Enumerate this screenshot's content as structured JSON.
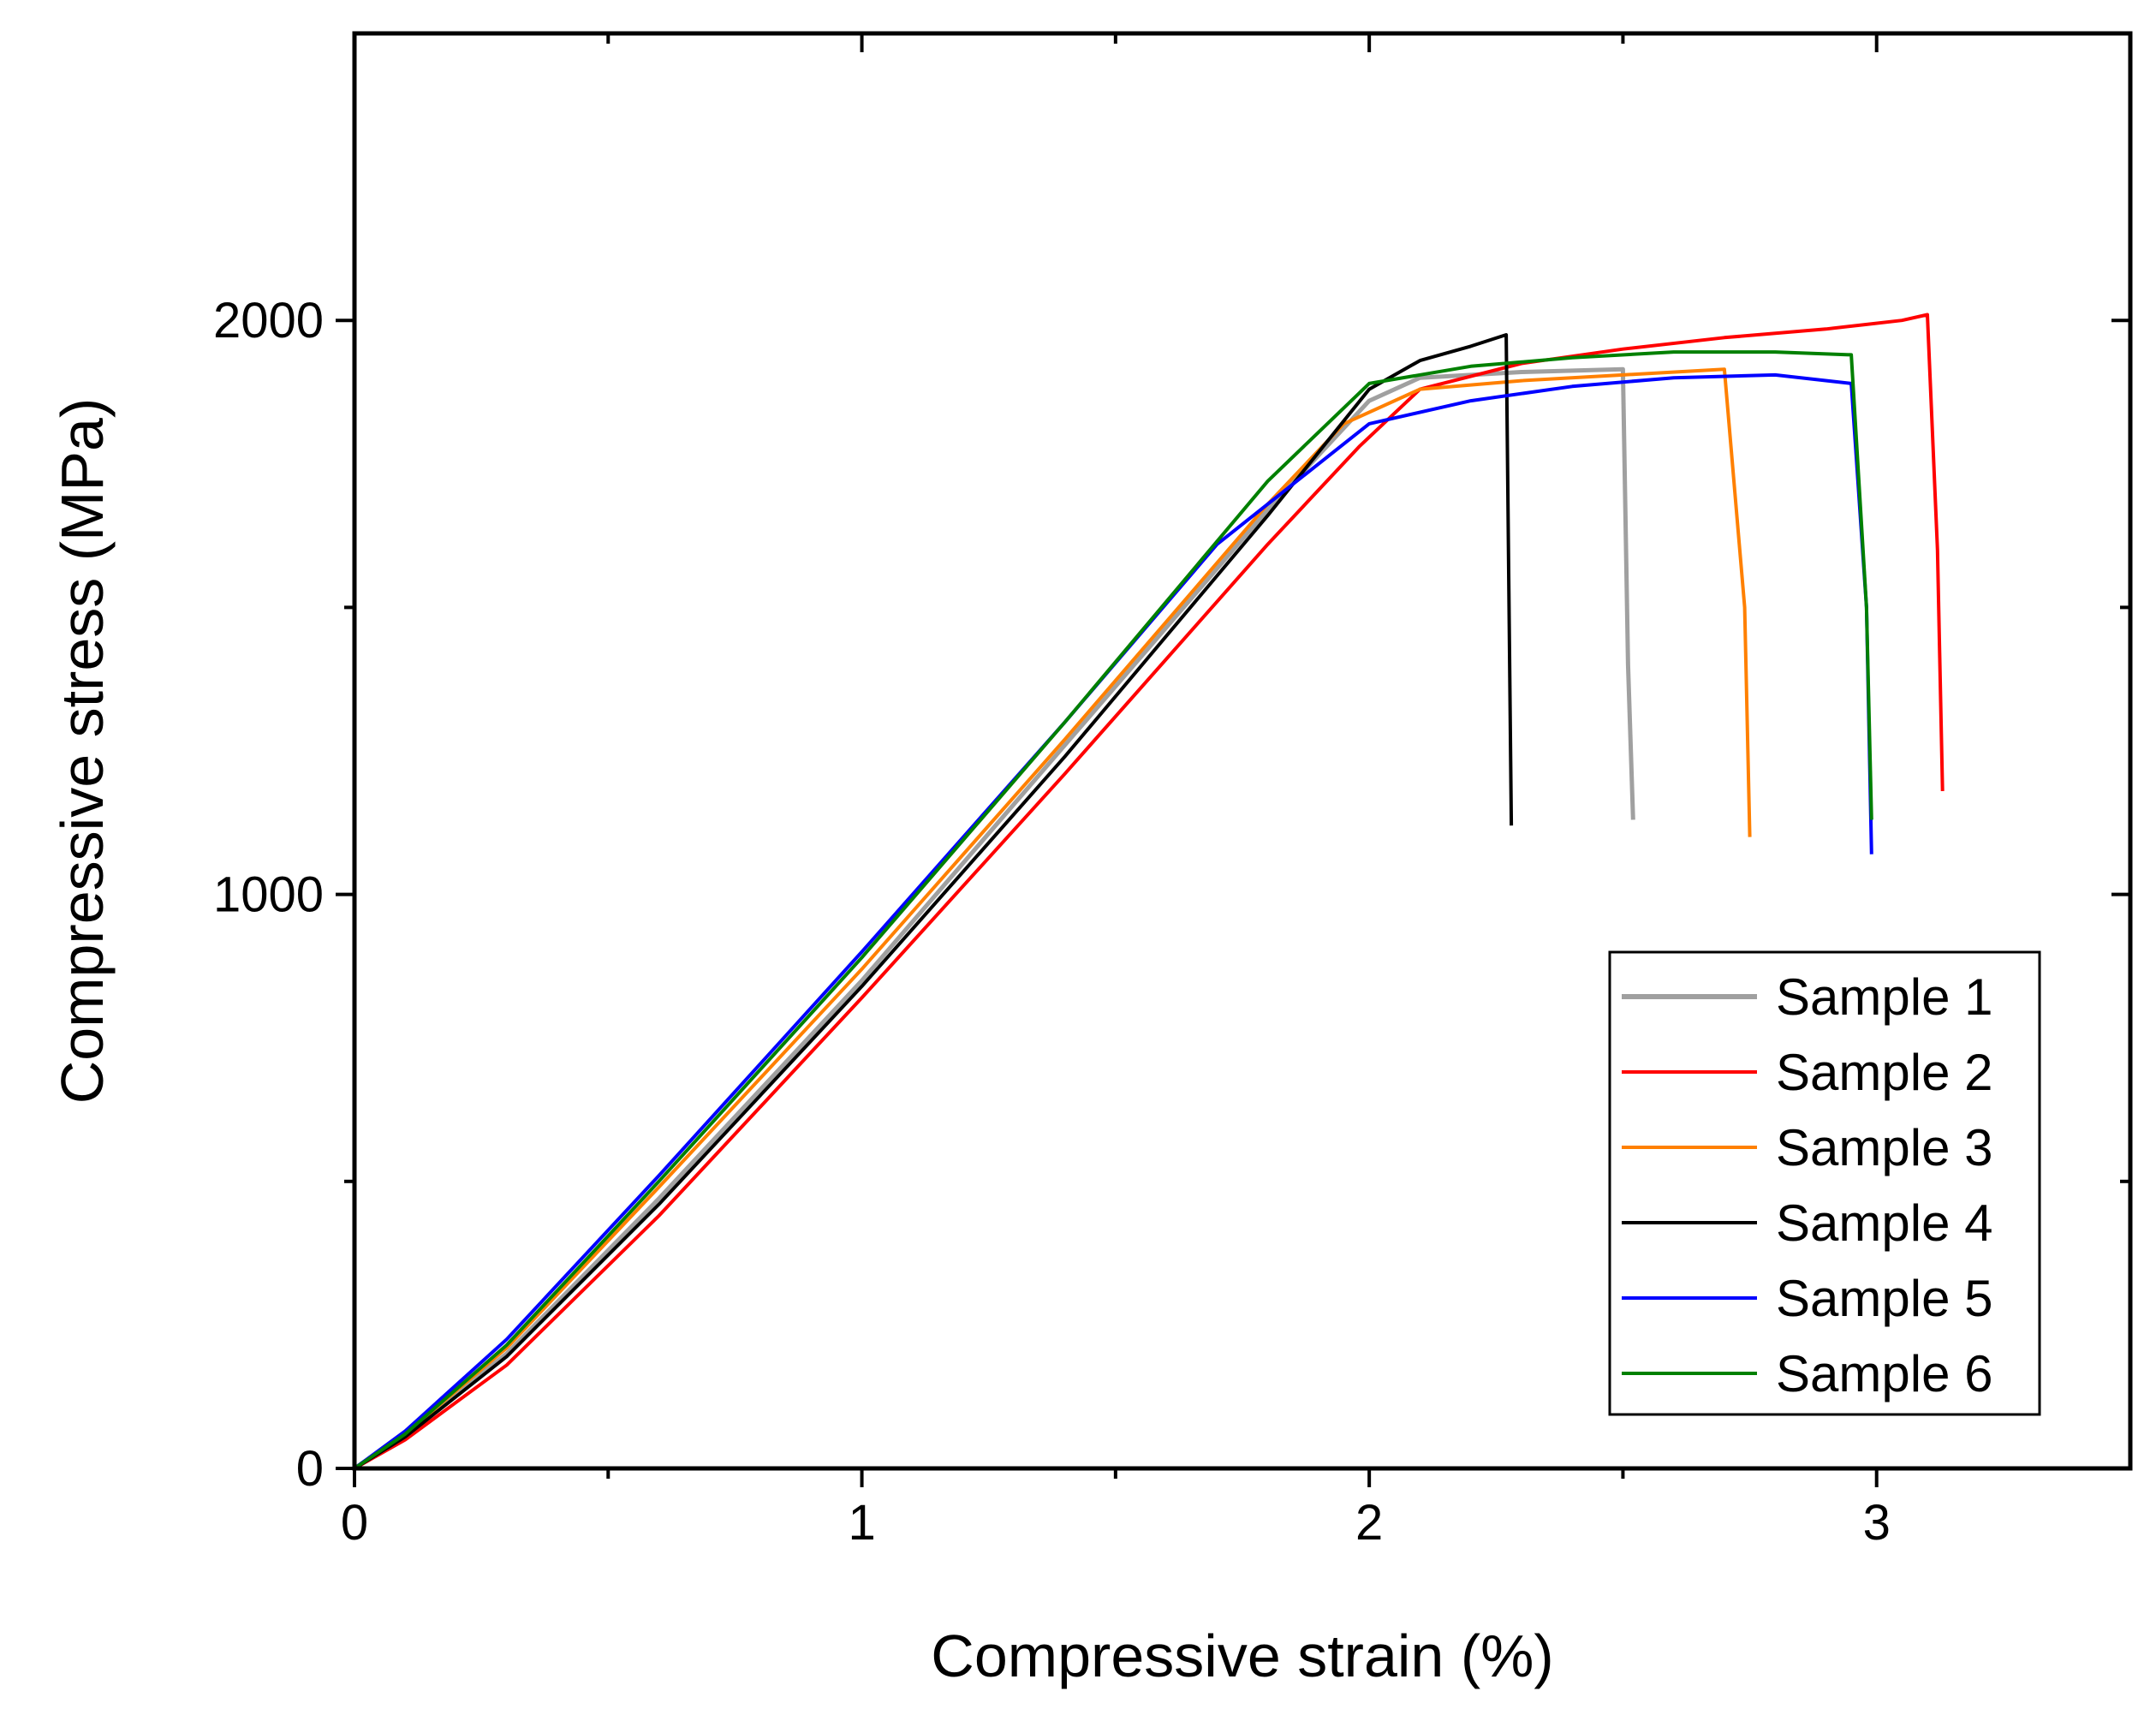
{
  "chart_data": {
    "type": "line",
    "title": "",
    "xlabel": "Compressive strain (%)",
    "ylabel": "Compressive stress (MPa)",
    "xlim": [
      0,
      3.5
    ],
    "ylim": [
      0,
      2500
    ],
    "xticks": [
      0,
      1,
      2,
      3
    ],
    "xtick_labels": [
      "0",
      "1",
      "2",
      "3"
    ],
    "xminor": [
      0.5,
      1.5,
      2.5
    ],
    "yticks": [
      0,
      1000,
      2000
    ],
    "ytick_labels": [
      "0",
      "1000",
      "2000"
    ],
    "yminor": [
      500,
      1500
    ],
    "grid": false,
    "legend_position": "lower-right",
    "series": [
      {
        "name": "Sample 1",
        "color": "#a0a0a0",
        "x": [
          0,
          0.1,
          0.3,
          0.6,
          1.0,
          1.4,
          1.8,
          2.0,
          2.1,
          2.3,
          2.5,
          2.51,
          2.52
        ],
        "y": [
          0,
          60,
          200,
          470,
          850,
          1260,
          1670,
          1860,
          1900,
          1910,
          1915,
          1400,
          1130
        ]
      },
      {
        "name": "Sample 2",
        "color": "#ff0000",
        "x": [
          0,
          0.1,
          0.3,
          0.6,
          1.0,
          1.4,
          1.8,
          1.98,
          2.1,
          2.3,
          2.5,
          2.7,
          2.9,
          3.05,
          3.1,
          3.12,
          3.13
        ],
        "y": [
          0,
          50,
          180,
          440,
          820,
          1210,
          1610,
          1780,
          1880,
          1925,
          1950,
          1970,
          1985,
          2000,
          2010,
          1600,
          1180
        ]
      },
      {
        "name": "Sample 3",
        "color": "#ff8000",
        "x": [
          0,
          0.1,
          0.3,
          0.6,
          1.0,
          1.4,
          1.8,
          1.95,
          2.1,
          2.3,
          2.5,
          2.7,
          2.74,
          2.75
        ],
        "y": [
          0,
          60,
          210,
          490,
          870,
          1270,
          1680,
          1820,
          1880,
          1895,
          1905,
          1915,
          1500,
          1100
        ]
      },
      {
        "name": "Sample 4",
        "color": "#000000",
        "x": [
          0,
          0.1,
          0.3,
          0.6,
          1.0,
          1.4,
          1.8,
          2.0,
          2.1,
          2.2,
          2.27,
          2.28
        ],
        "y": [
          0,
          55,
          195,
          460,
          840,
          1240,
          1660,
          1880,
          1930,
          1955,
          1975,
          1120
        ]
      },
      {
        "name": "Sample 5",
        "color": "#0000ff",
        "x": [
          0,
          0.1,
          0.3,
          0.6,
          1.0,
          1.4,
          1.7,
          2.0,
          2.2,
          2.4,
          2.6,
          2.8,
          2.95,
          2.98,
          2.99
        ],
        "y": [
          0,
          65,
          225,
          510,
          900,
          1300,
          1610,
          1820,
          1860,
          1885,
          1900,
          1905,
          1890,
          1500,
          1070
        ]
      },
      {
        "name": "Sample 6",
        "color": "#008000",
        "x": [
          0,
          0.1,
          0.3,
          0.6,
          1.0,
          1.4,
          1.8,
          2.0,
          2.2,
          2.4,
          2.6,
          2.8,
          2.95,
          2.98,
          2.99
        ],
        "y": [
          0,
          60,
          215,
          500,
          890,
          1300,
          1720,
          1890,
          1920,
          1935,
          1945,
          1945,
          1940,
          1500,
          1130
        ]
      }
    ]
  }
}
